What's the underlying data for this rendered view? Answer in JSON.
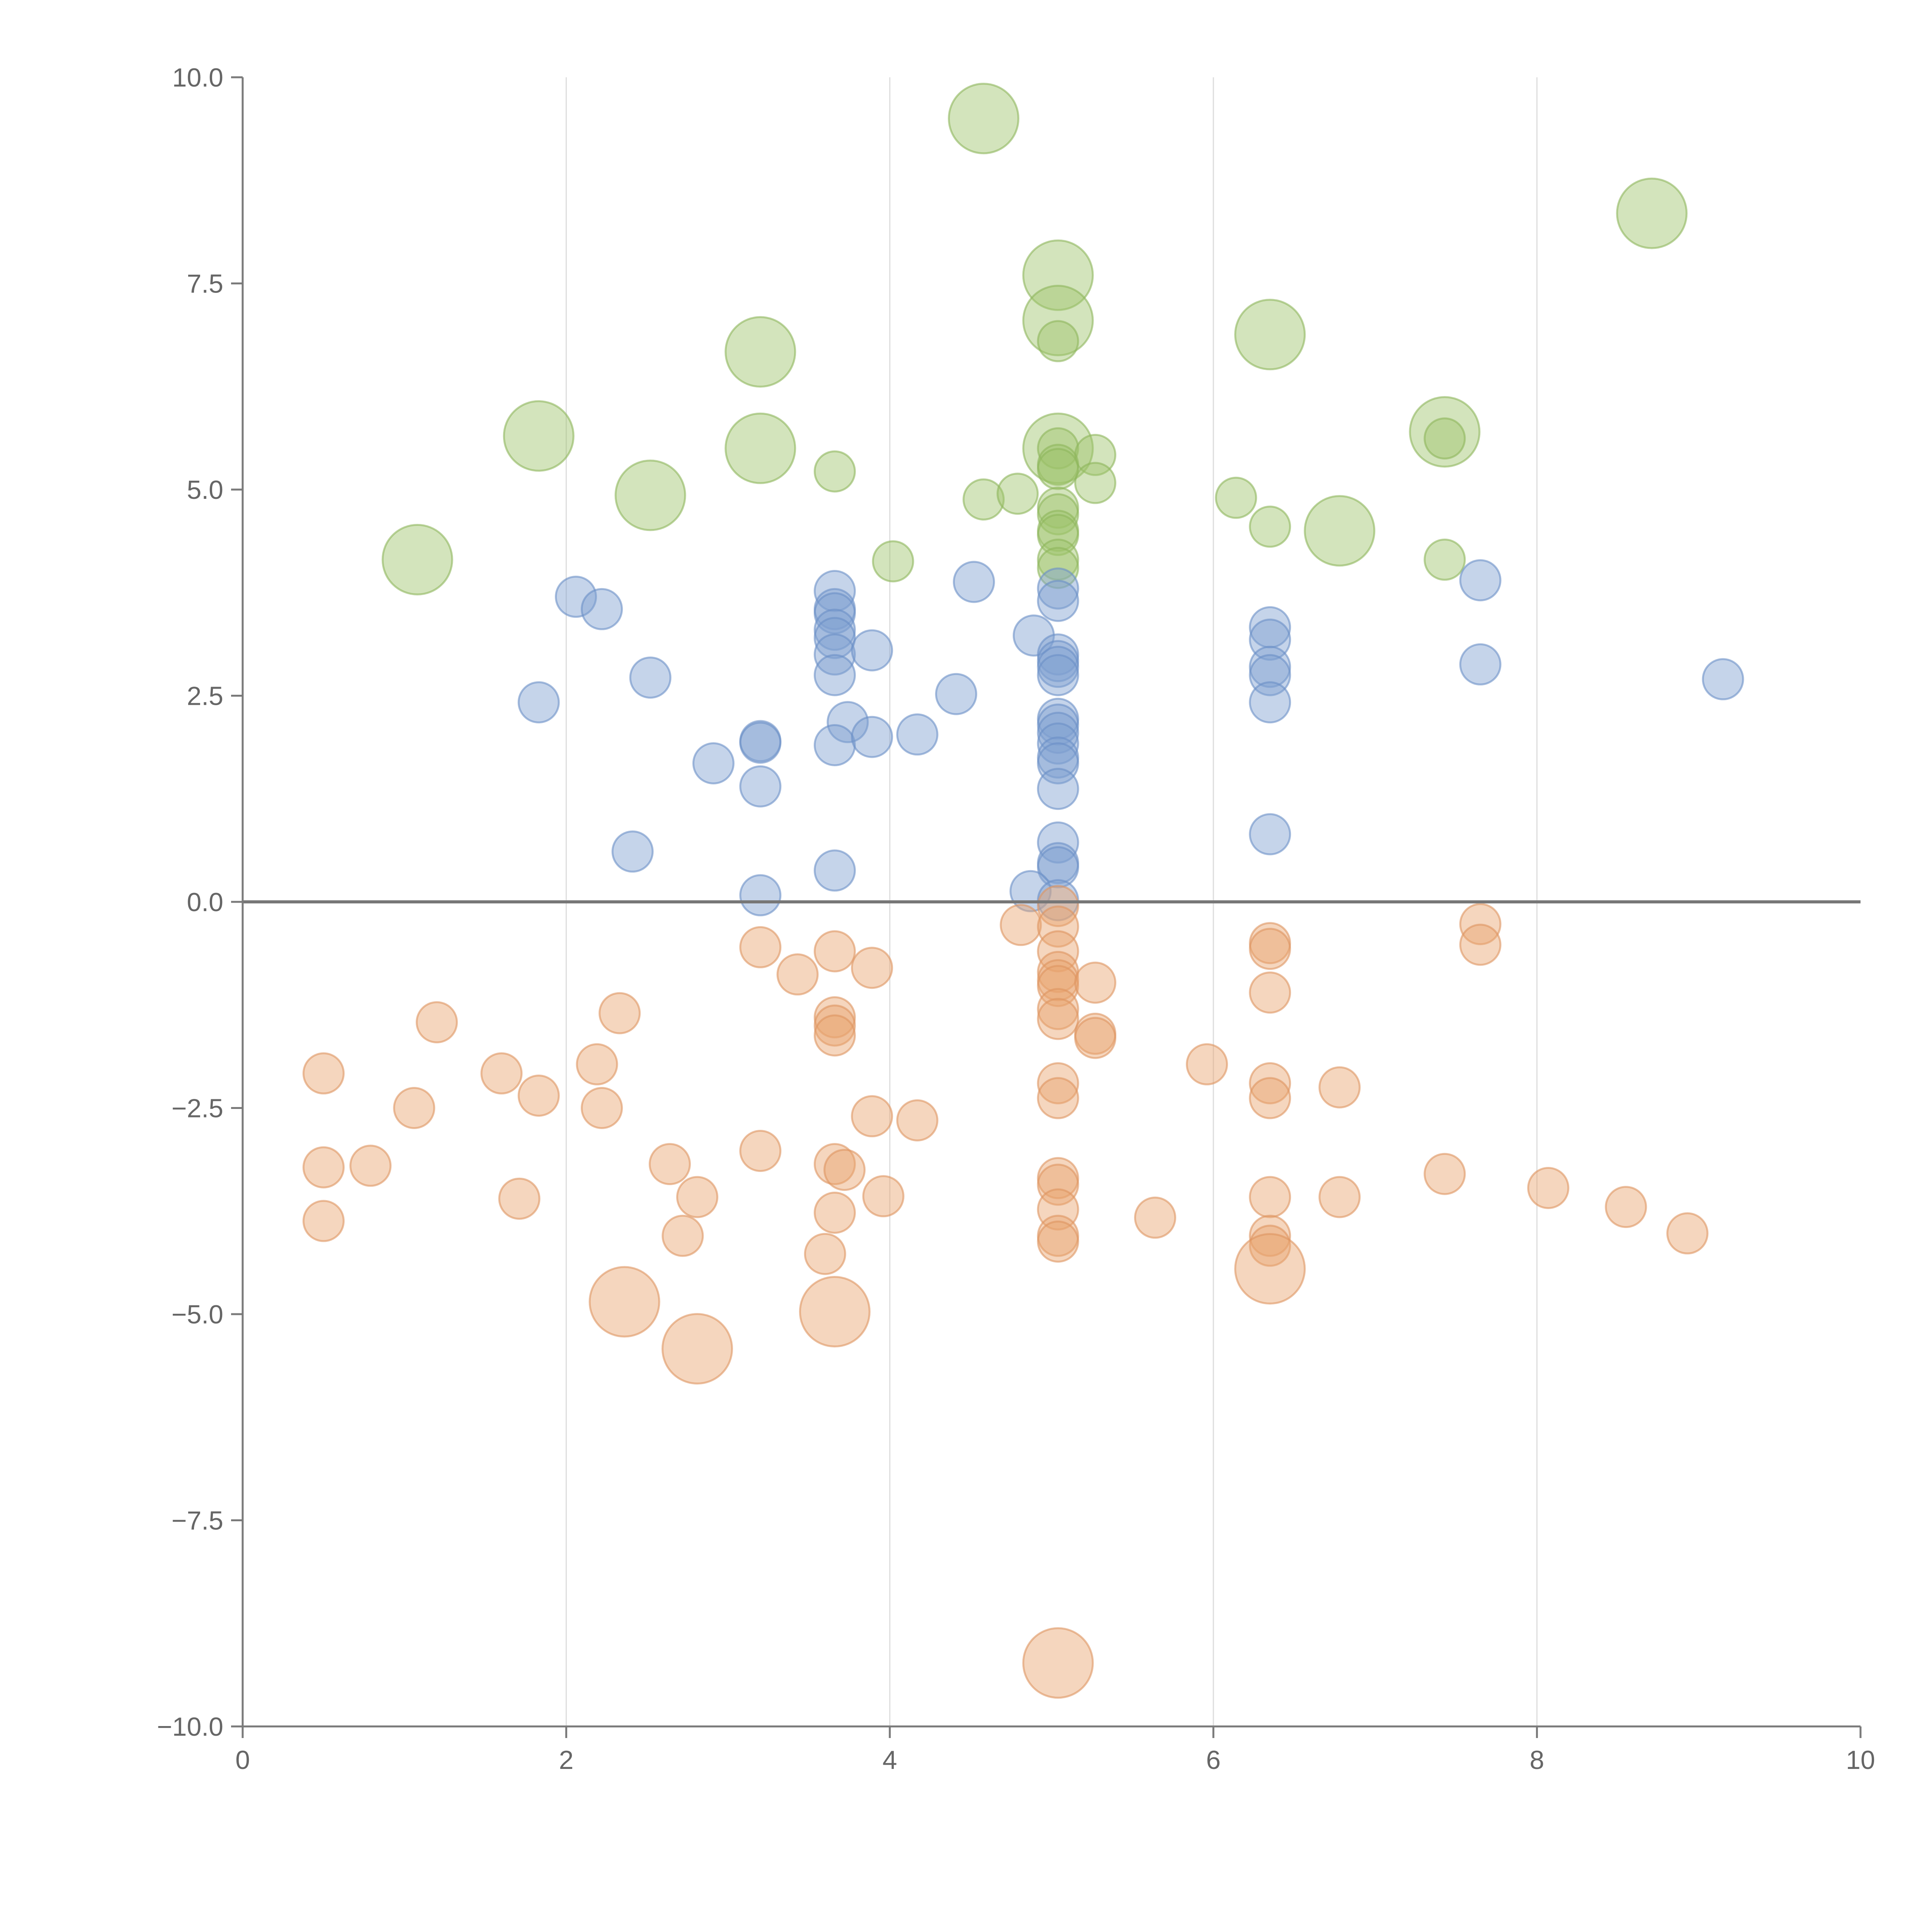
{
  "chart_data": {
    "type": "scatter",
    "title": "",
    "xlabel": "",
    "ylabel": "",
    "xlim": [
      0,
      10
    ],
    "ylim": [
      -10,
      10
    ],
    "x_ticks": [
      0,
      2,
      4,
      6,
      8,
      10
    ],
    "x_tick_labels": [
      "0",
      "2",
      "4",
      "6",
      "8",
      "10"
    ],
    "y_ticks": [
      10,
      7.5,
      5,
      2.5,
      0,
      -2.5,
      -5,
      -7.5,
      -10
    ],
    "y_tick_labels": [
      "10.0",
      "7.5",
      "5.0",
      "2.5",
      "0.0",
      "−2.5",
      "−5.0",
      "−7.5",
      "−10.0"
    ],
    "grid": "vertical",
    "zero_line": true,
    "legend": "none",
    "series": [
      {
        "name": "green",
        "color": "#9dc36b",
        "stroke": "#8db55c",
        "points": [
          {
            "x": 4.58,
            "y": 9.5,
            "r": 2
          },
          {
            "x": 8.71,
            "y": 8.35,
            "r": 2
          },
          {
            "x": 5.04,
            "y": 7.6,
            "r": 2
          },
          {
            "x": 5.04,
            "y": 7.05,
            "r": 2
          },
          {
            "x": 6.35,
            "y": 6.88,
            "r": 2
          },
          {
            "x": 3.2,
            "y": 6.67,
            "r": 2
          },
          {
            "x": 1.83,
            "y": 5.65,
            "r": 2
          },
          {
            "x": 7.43,
            "y": 5.7,
            "r": 2
          },
          {
            "x": 3.2,
            "y": 5.5,
            "r": 2
          },
          {
            "x": 5.04,
            "y": 5.5,
            "r": 2
          },
          {
            "x": 2.52,
            "y": 4.93,
            "r": 2
          },
          {
            "x": 6.78,
            "y": 4.5,
            "r": 2
          },
          {
            "x": 1.08,
            "y": 4.15,
            "r": 2
          },
          {
            "x": 5.04,
            "y": 6.8,
            "r": 1
          },
          {
            "x": 3.66,
            "y": 5.22,
            "r": 1
          },
          {
            "x": 5.04,
            "y": 5.5,
            "r": 1
          },
          {
            "x": 5.27,
            "y": 5.42,
            "r": 1
          },
          {
            "x": 5.04,
            "y": 5.3,
            "r": 1
          },
          {
            "x": 5.04,
            "y": 5.25,
            "r": 1
          },
          {
            "x": 7.43,
            "y": 5.62,
            "r": 1
          },
          {
            "x": 5.27,
            "y": 5.08,
            "r": 1
          },
          {
            "x": 4.58,
            "y": 4.88,
            "r": 1
          },
          {
            "x": 4.79,
            "y": 4.95,
            "r": 1
          },
          {
            "x": 5.04,
            "y": 4.78,
            "r": 1
          },
          {
            "x": 5.04,
            "y": 4.7,
            "r": 1
          },
          {
            "x": 6.14,
            "y": 4.9,
            "r": 1
          },
          {
            "x": 6.35,
            "y": 4.55,
            "r": 1
          },
          {
            "x": 5.04,
            "y": 4.5,
            "r": 1
          },
          {
            "x": 5.04,
            "y": 4.45,
            "r": 1
          },
          {
            "x": 5.04,
            "y": 4.15,
            "r": 1
          },
          {
            "x": 5.04,
            "y": 4.05,
            "r": 1
          },
          {
            "x": 4.02,
            "y": 4.13,
            "r": 1
          },
          {
            "x": 7.43,
            "y": 4.15,
            "r": 1
          }
        ]
      },
      {
        "name": "blue",
        "color": "#7f9fd0",
        "stroke": "#6b8fc6",
        "points": [
          {
            "x": 3.66,
            "y": 3.77,
            "r": 1
          },
          {
            "x": 2.06,
            "y": 3.7,
            "r": 1
          },
          {
            "x": 2.22,
            "y": 3.55,
            "r": 1
          },
          {
            "x": 4.52,
            "y": 3.88,
            "r": 1
          },
          {
            "x": 7.65,
            "y": 3.9,
            "r": 1
          },
          {
            "x": 5.04,
            "y": 3.8,
            "r": 1
          },
          {
            "x": 5.04,
            "y": 3.65,
            "r": 1
          },
          {
            "x": 3.66,
            "y": 3.55,
            "r": 1
          },
          {
            "x": 3.66,
            "y": 3.5,
            "r": 1
          },
          {
            "x": 3.66,
            "y": 3.3,
            "r": 1
          },
          {
            "x": 3.66,
            "y": 3.2,
            "r": 1
          },
          {
            "x": 3.66,
            "y": 3.0,
            "r": 1
          },
          {
            "x": 3.89,
            "y": 3.05,
            "r": 1
          },
          {
            "x": 4.89,
            "y": 3.23,
            "r": 1
          },
          {
            "x": 6.35,
            "y": 3.33,
            "r": 1
          },
          {
            "x": 6.35,
            "y": 3.18,
            "r": 1
          },
          {
            "x": 5.04,
            "y": 3.0,
            "r": 1
          },
          {
            "x": 5.04,
            "y": 2.92,
            "r": 1
          },
          {
            "x": 5.04,
            "y": 2.85,
            "r": 1
          },
          {
            "x": 5.04,
            "y": 2.75,
            "r": 1
          },
          {
            "x": 3.66,
            "y": 2.75,
            "r": 1
          },
          {
            "x": 6.35,
            "y": 2.85,
            "r": 1
          },
          {
            "x": 6.35,
            "y": 2.75,
            "r": 1
          },
          {
            "x": 7.65,
            "y": 2.88,
            "r": 1
          },
          {
            "x": 9.15,
            "y": 2.7,
            "r": 1
          },
          {
            "x": 2.52,
            "y": 2.72,
            "r": 1
          },
          {
            "x": 1.83,
            "y": 2.42,
            "r": 1
          },
          {
            "x": 4.41,
            "y": 2.52,
            "r": 1
          },
          {
            "x": 6.35,
            "y": 2.42,
            "r": 1
          },
          {
            "x": 5.04,
            "y": 2.22,
            "r": 1
          },
          {
            "x": 5.04,
            "y": 2.15,
            "r": 1
          },
          {
            "x": 5.04,
            "y": 2.05,
            "r": 1
          },
          {
            "x": 3.74,
            "y": 2.18,
            "r": 1
          },
          {
            "x": 3.2,
            "y": 1.95,
            "r": 1
          },
          {
            "x": 3.2,
            "y": 1.93,
            "r": 1
          },
          {
            "x": 3.66,
            "y": 1.9,
            "r": 1
          },
          {
            "x": 3.89,
            "y": 2.0,
            "r": 1
          },
          {
            "x": 4.17,
            "y": 2.03,
            "r": 1
          },
          {
            "x": 5.04,
            "y": 1.92,
            "r": 1
          },
          {
            "x": 5.04,
            "y": 1.75,
            "r": 1
          },
          {
            "x": 5.04,
            "y": 1.68,
            "r": 1
          },
          {
            "x": 2.91,
            "y": 1.68,
            "r": 1
          },
          {
            "x": 3.2,
            "y": 1.4,
            "r": 1
          },
          {
            "x": 5.04,
            "y": 1.37,
            "r": 1
          },
          {
            "x": 6.35,
            "y": 0.82,
            "r": 1
          },
          {
            "x": 5.04,
            "y": 0.72,
            "r": 1
          },
          {
            "x": 2.41,
            "y": 0.61,
            "r": 1
          },
          {
            "x": 5.04,
            "y": 0.47,
            "r": 1
          },
          {
            "x": 5.04,
            "y": 0.42,
            "r": 1
          },
          {
            "x": 3.66,
            "y": 0.38,
            "r": 1
          },
          {
            "x": 4.87,
            "y": 0.13,
            "r": 1
          },
          {
            "x": 3.2,
            "y": 0.08,
            "r": 1
          },
          {
            "x": 5.04,
            "y": 0.02,
            "r": 1
          }
        ]
      },
      {
        "name": "orange",
        "color": "#e8a46f",
        "stroke": "#dd9460",
        "points": [
          {
            "x": 5.04,
            "y": -0.05,
            "r": 1
          },
          {
            "x": 4.81,
            "y": -0.28,
            "r": 1
          },
          {
            "x": 5.04,
            "y": -0.3,
            "r": 1
          },
          {
            "x": 7.65,
            "y": -0.27,
            "r": 1
          },
          {
            "x": 7.65,
            "y": -0.52,
            "r": 1
          },
          {
            "x": 6.35,
            "y": -0.5,
            "r": 1
          },
          {
            "x": 6.35,
            "y": -0.57,
            "r": 1
          },
          {
            "x": 3.2,
            "y": -0.55,
            "r": 1
          },
          {
            "x": 3.66,
            "y": -0.6,
            "r": 1
          },
          {
            "x": 5.04,
            "y": -0.6,
            "r": 1
          },
          {
            "x": 3.89,
            "y": -0.8,
            "r": 1
          },
          {
            "x": 3.43,
            "y": -0.88,
            "r": 1
          },
          {
            "x": 5.04,
            "y": -0.85,
            "r": 1
          },
          {
            "x": 5.04,
            "y": -0.95,
            "r": 1
          },
          {
            "x": 5.04,
            "y": -1.02,
            "r": 1
          },
          {
            "x": 5.27,
            "y": -0.98,
            "r": 1
          },
          {
            "x": 6.35,
            "y": -1.1,
            "r": 1
          },
          {
            "x": 2.33,
            "y": -1.35,
            "r": 1
          },
          {
            "x": 1.2,
            "y": -1.46,
            "r": 1
          },
          {
            "x": 3.66,
            "y": -1.4,
            "r": 1
          },
          {
            "x": 3.66,
            "y": -1.5,
            "r": 1
          },
          {
            "x": 3.66,
            "y": -1.62,
            "r": 1
          },
          {
            "x": 5.04,
            "y": -1.3,
            "r": 1
          },
          {
            "x": 5.04,
            "y": -1.42,
            "r": 1
          },
          {
            "x": 5.27,
            "y": -1.6,
            "r": 1
          },
          {
            "x": 5.27,
            "y": -1.65,
            "r": 1
          },
          {
            "x": 2.19,
            "y": -1.97,
            "r": 1
          },
          {
            "x": 5.96,
            "y": -1.97,
            "r": 1
          },
          {
            "x": 0.5,
            "y": -2.08,
            "r": 1
          },
          {
            "x": 1.6,
            "y": -2.08,
            "r": 1
          },
          {
            "x": 5.04,
            "y": -2.2,
            "r": 1
          },
          {
            "x": 6.35,
            "y": -2.2,
            "r": 1
          },
          {
            "x": 6.78,
            "y": -2.25,
            "r": 1
          },
          {
            "x": 1.83,
            "y": -2.35,
            "r": 1
          },
          {
            "x": 5.04,
            "y": -2.38,
            "r": 1
          },
          {
            "x": 6.35,
            "y": -2.38,
            "r": 1
          },
          {
            "x": 1.06,
            "y": -2.5,
            "r": 1
          },
          {
            "x": 2.22,
            "y": -2.5,
            "r": 1
          },
          {
            "x": 3.89,
            "y": -2.6,
            "r": 1
          },
          {
            "x": 4.17,
            "y": -2.65,
            "r": 1
          },
          {
            "x": 3.2,
            "y": -3.02,
            "r": 1
          },
          {
            "x": 0.5,
            "y": -3.22,
            "r": 1
          },
          {
            "x": 0.79,
            "y": -3.2,
            "r": 1
          },
          {
            "x": 2.64,
            "y": -3.18,
            "r": 1
          },
          {
            "x": 3.66,
            "y": -3.18,
            "r": 1
          },
          {
            "x": 3.72,
            "y": -3.25,
            "r": 1
          },
          {
            "x": 5.04,
            "y": -3.35,
            "r": 1
          },
          {
            "x": 5.04,
            "y": -3.43,
            "r": 1
          },
          {
            "x": 7.43,
            "y": -3.3,
            "r": 1
          },
          {
            "x": 8.07,
            "y": -3.47,
            "r": 1
          },
          {
            "x": 1.71,
            "y": -3.6,
            "r": 1
          },
          {
            "x": 2.81,
            "y": -3.58,
            "r": 1
          },
          {
            "x": 3.96,
            "y": -3.57,
            "r": 1
          },
          {
            "x": 6.35,
            "y": -3.58,
            "r": 1
          },
          {
            "x": 6.78,
            "y": -3.58,
            "r": 1
          },
          {
            "x": 8.55,
            "y": -3.7,
            "r": 1
          },
          {
            "x": 5.04,
            "y": -3.73,
            "r": 1
          },
          {
            "x": 3.66,
            "y": -3.77,
            "r": 1
          },
          {
            "x": 5.64,
            "y": -3.83,
            "r": 1
          },
          {
            "x": 0.5,
            "y": -3.87,
            "r": 1
          },
          {
            "x": 8.93,
            "y": -4.02,
            "r": 1
          },
          {
            "x": 2.72,
            "y": -4.05,
            "r": 1
          },
          {
            "x": 5.04,
            "y": -4.05,
            "r": 1
          },
          {
            "x": 5.04,
            "y": -4.12,
            "r": 1
          },
          {
            "x": 6.35,
            "y": -4.05,
            "r": 1
          },
          {
            "x": 6.35,
            "y": -4.17,
            "r": 1
          },
          {
            "x": 3.6,
            "y": -4.27,
            "r": 1
          },
          {
            "x": 6.35,
            "y": -4.45,
            "r": 2
          },
          {
            "x": 2.36,
            "y": -4.85,
            "r": 2
          },
          {
            "x": 3.66,
            "y": -4.97,
            "r": 2
          },
          {
            "x": 2.81,
            "y": -5.42,
            "r": 2
          },
          {
            "x": 5.04,
            "y": -9.23,
            "r": 2
          }
        ]
      }
    ]
  }
}
